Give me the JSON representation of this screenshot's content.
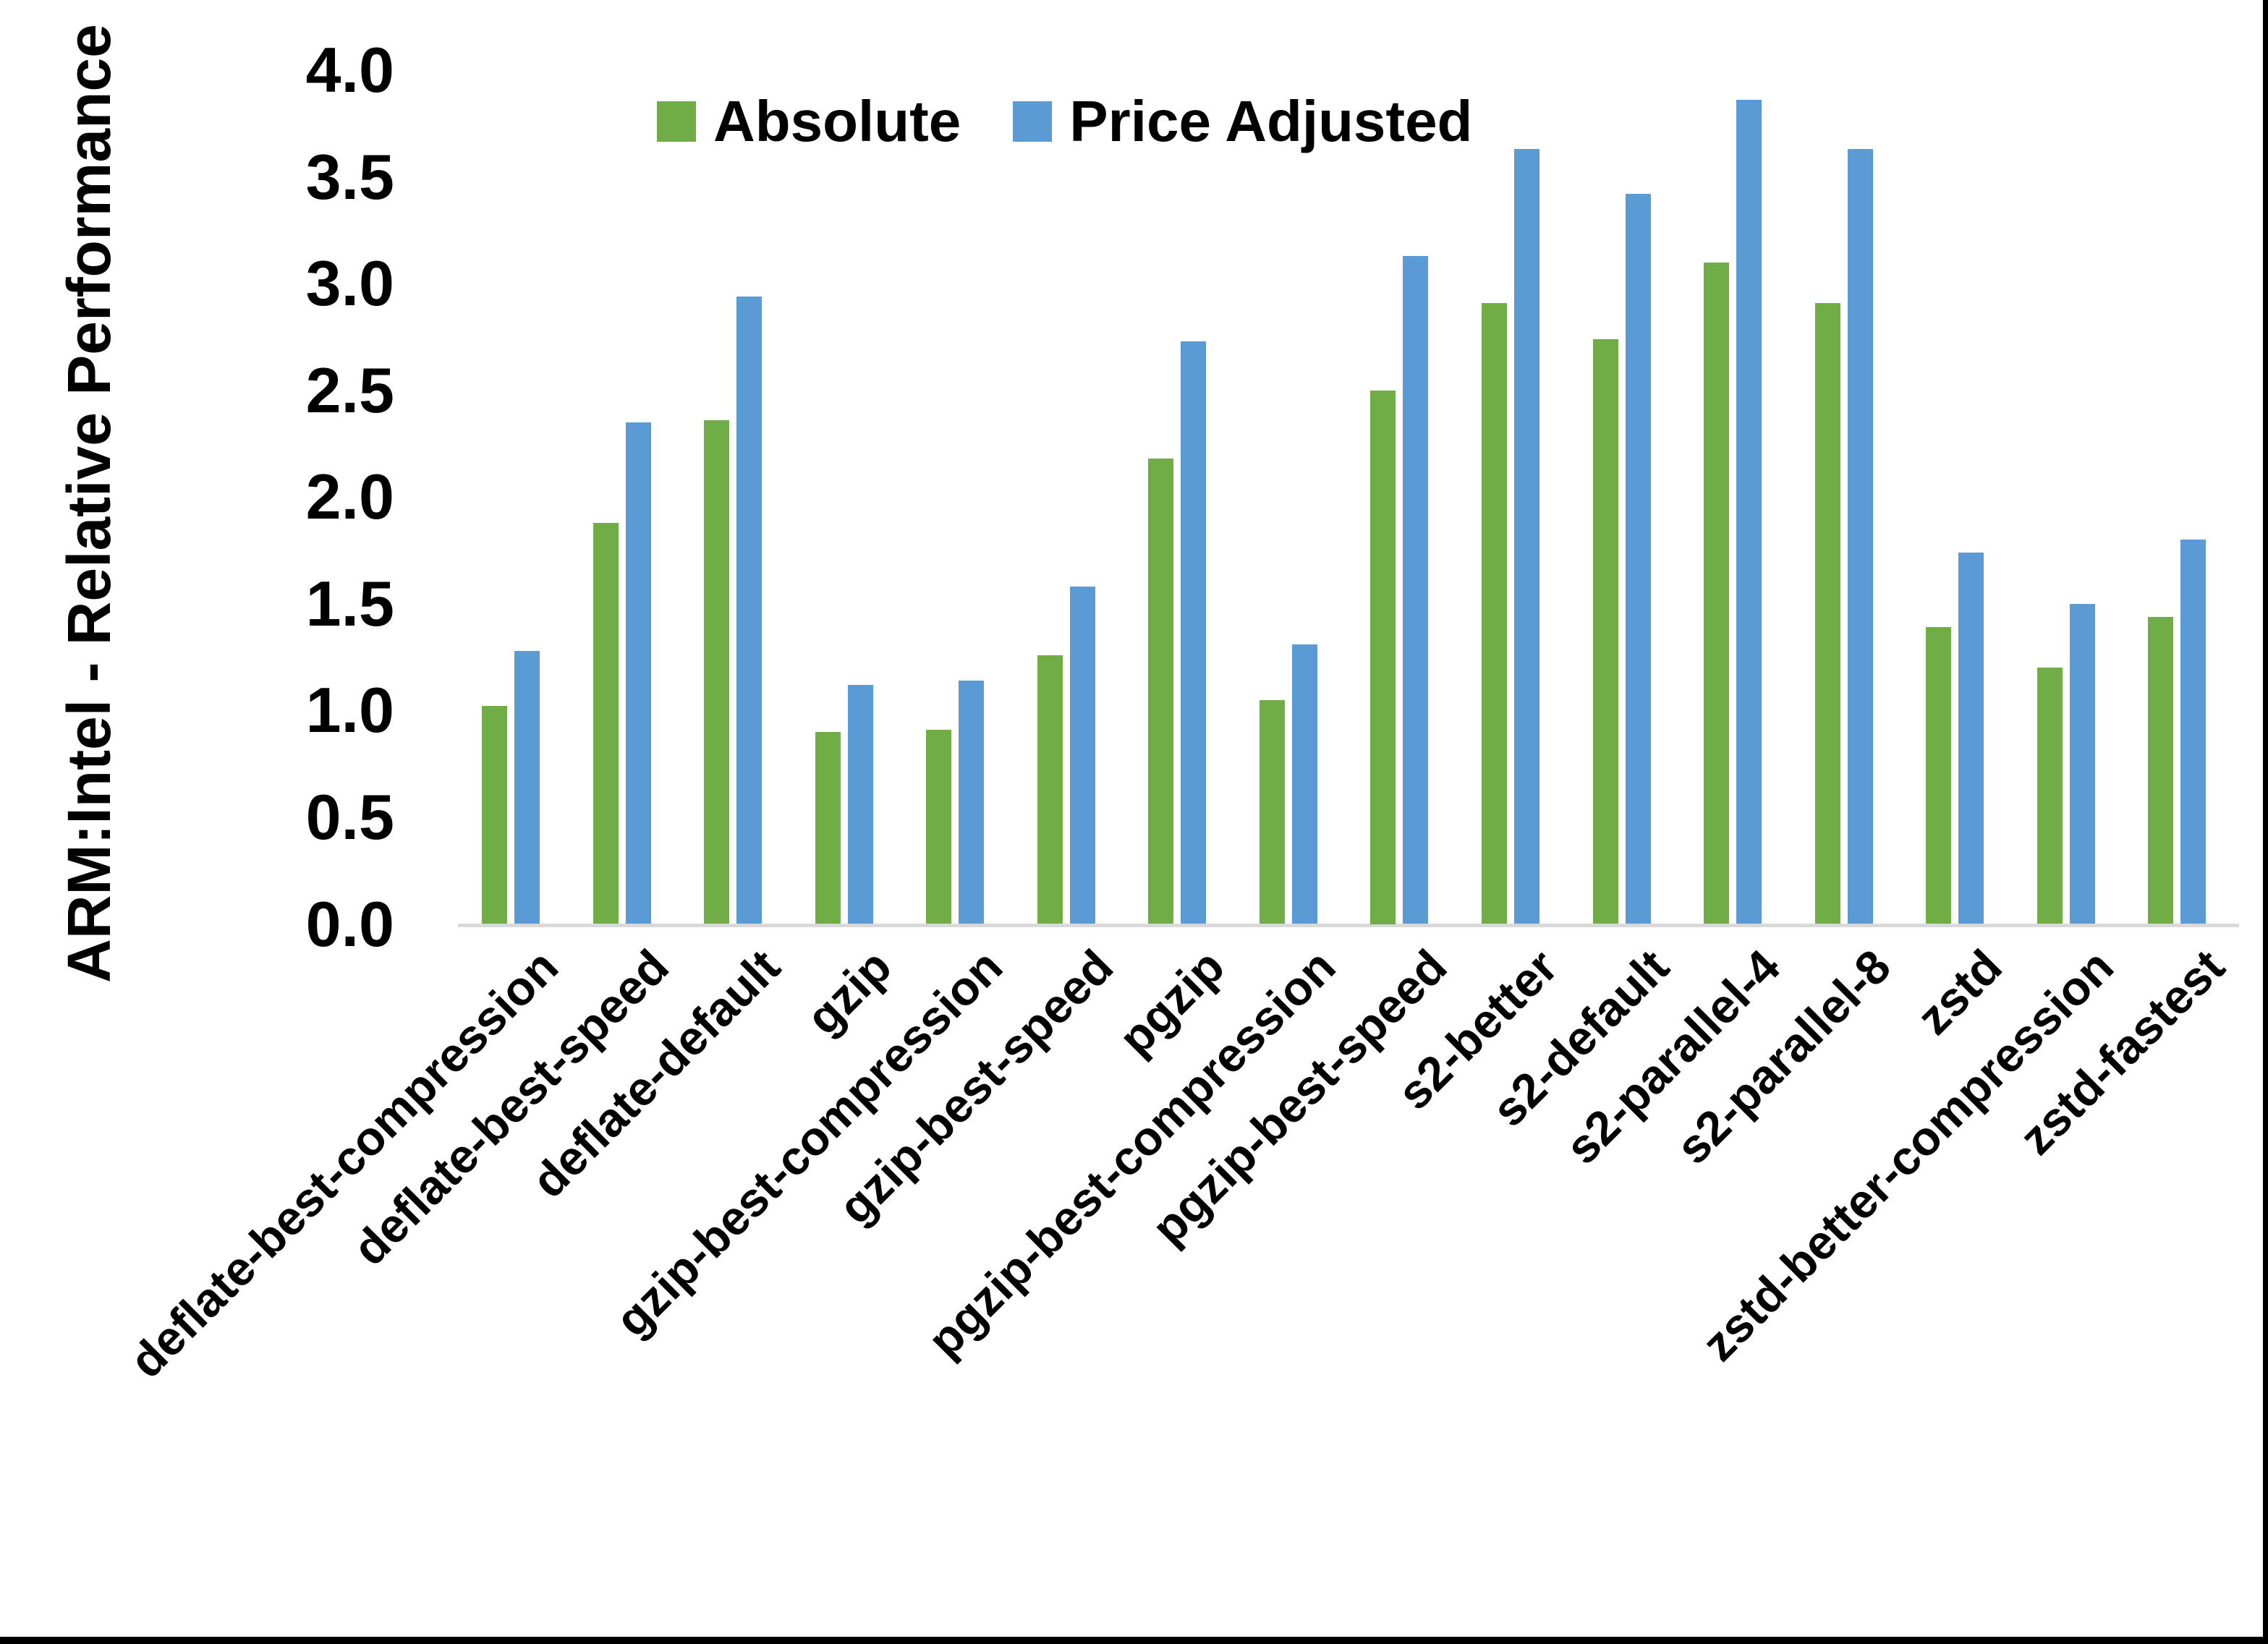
{
  "chart_data": {
    "type": "bar",
    "title": "",
    "y_axis": {
      "title": "ARM:Intel - Relative Performance",
      "min": 0.0,
      "max": 4.0,
      "tick_step": 0.5,
      "tick_labels": [
        "0.0",
        "0.5",
        "1.0",
        "1.5",
        "2.0",
        "2.5",
        "3.0",
        "3.5",
        "4.0"
      ]
    },
    "categories": [
      "deflate-best-compression",
      "deflate-best-speed",
      "deflate-default",
      "gzip",
      "gzip-best-compression",
      "gzip-best-speed",
      "pgzip",
      "pgzip-best-compression",
      "pgzip-best-speed",
      "s2-better",
      "s2-default",
      "s2-parallel-4",
      "s2-parallel-8",
      "zstd",
      "zstd-better-compression",
      "zstd-fastest"
    ],
    "series": [
      {
        "name": "Absolute",
        "color": "#70AD47",
        "values": [
          1.02,
          1.88,
          2.36,
          0.9,
          0.91,
          1.26,
          2.18,
          1.05,
          2.5,
          2.91,
          2.74,
          3.1,
          2.91,
          1.39,
          1.2,
          1.44
        ]
      },
      {
        "name": "Price Adjusted",
        "color": "#5B9BD5",
        "values": [
          1.28,
          2.35,
          2.94,
          1.12,
          1.14,
          1.58,
          2.73,
          1.31,
          3.13,
          3.63,
          3.42,
          3.86,
          3.63,
          1.74,
          1.5,
          1.8
        ]
      }
    ],
    "legend_position": "top-center",
    "grid": false,
    "background": "#FFFFFF",
    "axis_line_color": "#D9D9D9",
    "text_color": "#000000",
    "border_color": "#000000"
  }
}
